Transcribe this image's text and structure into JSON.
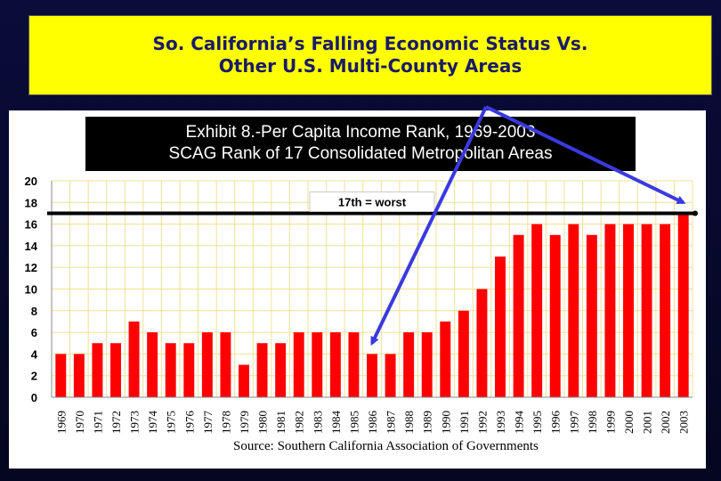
{
  "slide": {
    "title_line1": "So. California’s Falling Economic Status Vs.",
    "title_line2": "Other U.S. Multi-County Areas"
  },
  "exhibit": {
    "line1": "Exhibit 8.-Per Capita Income Rank, 1969-2003",
    "line2": "SCAG Rank of 17 Consolidated Metropolitan Areas"
  },
  "source": "Source:  Southern California Association of Governments",
  "colors": {
    "bar": "#ff0000",
    "title_bg": "#ffff00",
    "title_text": "#1a1a6a",
    "arrow": "#3a3ae0",
    "background": "#05061f"
  },
  "chart_data": {
    "type": "bar",
    "categories": [
      "1969",
      "1970",
      "1971",
      "1972",
      "1973",
      "1974",
      "1975",
      "1976",
      "1977",
      "1978",
      "1979",
      "1980",
      "1981",
      "1982",
      "1983",
      "1984",
      "1985",
      "1986",
      "1987",
      "1988",
      "1989",
      "1990",
      "1991",
      "1992",
      "1993",
      "1994",
      "1995",
      "1996",
      "1997",
      "1998",
      "1999",
      "2000",
      "2001",
      "2002",
      "2003"
    ],
    "values": [
      4,
      4,
      5,
      5,
      7,
      6,
      5,
      5,
      6,
      6,
      3,
      5,
      5,
      6,
      6,
      6,
      6,
      4,
      4,
      6,
      6,
      7,
      8,
      10,
      13,
      15,
      16,
      15,
      16,
      15,
      16,
      16,
      16,
      16,
      17
    ],
    "ylim": [
      0,
      20
    ],
    "yticks": [
      0,
      2,
      4,
      6,
      8,
      10,
      12,
      14,
      16,
      18,
      20
    ],
    "reference_line": {
      "value": 17,
      "label": "17th = worst"
    },
    "grid": true,
    "arrows": [
      {
        "target_category": "1986"
      },
      {
        "target_category": "2003"
      }
    ]
  }
}
